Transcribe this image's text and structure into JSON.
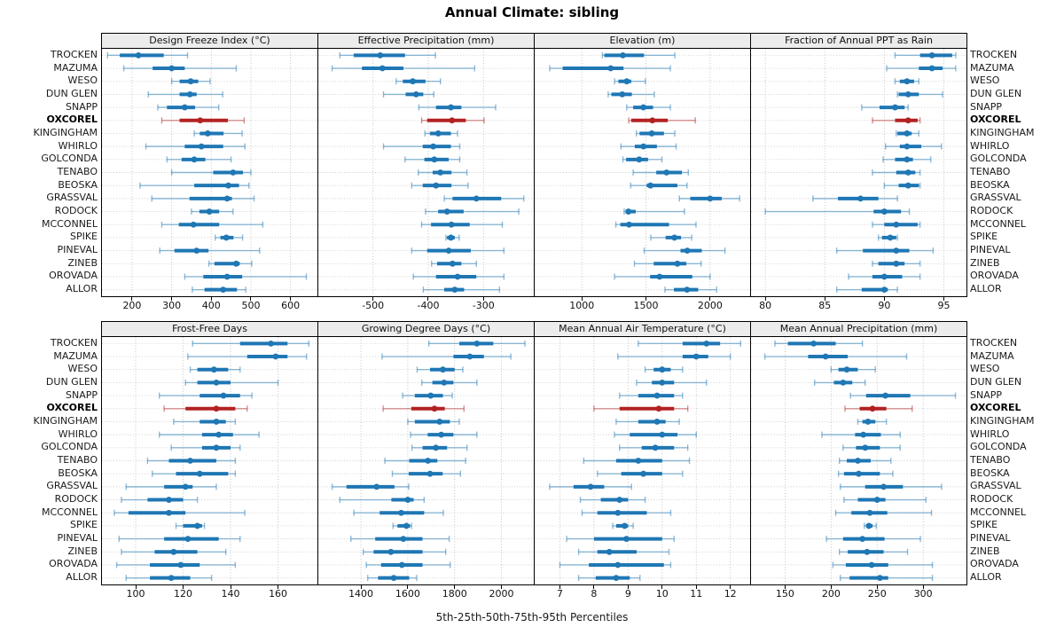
{
  "title": "Annual Climate: sibling",
  "caption": "5th-25th-50th-75th-95th Percentiles",
  "highlight_station": "OXCOREL",
  "colors": {
    "series_blue": "#1f77b4",
    "series_blue_light": "rgba(31,119,180,0.5)",
    "highlight_red": "#b22222",
    "highlight_red_light": "rgba(178,34,34,0.5)",
    "grid_line": "#bdbdbd",
    "row_line": "#cccccc",
    "panel_header_bg": "#ececec",
    "frame": "#000000"
  },
  "stations": [
    "TROCKEN",
    "MAZUMA",
    "WESO",
    "DUN GLEN",
    "SNAPP",
    "OXCOREL",
    "KINGINGHAM",
    "WHIRLO",
    "GOLCONDA",
    "TENABO",
    "BEOSKA",
    "GRASSVAL",
    "RODOCK",
    "MCCONNEL",
    "SPIKE",
    "PINEVAL",
    "ZINEB",
    "OROVADA",
    "ALLOR"
  ],
  "percentile_levels": [
    5,
    25,
    50,
    75,
    95
  ],
  "chart_data": [
    {
      "type": "percentile-dotplot",
      "title": "Design Freeze Index (°C)",
      "xlim": [
        124,
        668
      ],
      "ticks": [
        200,
        300,
        400,
        500,
        600
      ],
      "values": [
        [
          138,
          169,
          216,
          280,
          340
        ],
        [
          179,
          252,
          300,
          333,
          463
        ],
        [
          300,
          320,
          348,
          367,
          397
        ],
        [
          241,
          320,
          346,
          363,
          429
        ],
        [
          265,
          288,
          333,
          359,
          419
        ],
        [
          275,
          320,
          372,
          442,
          483
        ],
        [
          357,
          371,
          391,
          431,
          478
        ],
        [
          235,
          333,
          375,
          430,
          485
        ],
        [
          288,
          325,
          357,
          385,
          450
        ],
        [
          300,
          405,
          455,
          480,
          500
        ],
        [
          220,
          357,
          443,
          470,
          495
        ],
        [
          250,
          345,
          440,
          452,
          508
        ],
        [
          350,
          370,
          395,
          420,
          455
        ],
        [
          275,
          318,
          355,
          420,
          530
        ],
        [
          410,
          423,
          438,
          456,
          479
        ],
        [
          270,
          307,
          363,
          393,
          522
        ],
        [
          394,
          408,
          463,
          472,
          502
        ],
        [
          333,
          380,
          440,
          478,
          640
        ],
        [
          352,
          383,
          430,
          465,
          487
        ]
      ]
    },
    {
      "type": "percentile-dotplot",
      "title": "Effective Precipitation (mm)",
      "xlim": [
        -599,
        -209
      ],
      "ticks": [
        -500,
        -400,
        -300
      ],
      "values": [
        [
          -560,
          -535,
          -487,
          -442,
          -387
        ],
        [
          -574,
          -520,
          -483,
          -445,
          -316
        ],
        [
          -458,
          -446,
          -428,
          -405,
          -378
        ],
        [
          -481,
          -441,
          -422,
          -409,
          -390
        ],
        [
          -417,
          -386,
          -359,
          -340,
          -278
        ],
        [
          -412,
          -402,
          -357,
          -332,
          -299
        ],
        [
          -406,
          -397,
          -382,
          -359,
          -347
        ],
        [
          -481,
          -410,
          -391,
          -359,
          -343
        ],
        [
          -442,
          -407,
          -389,
          -363,
          -343
        ],
        [
          -418,
          -392,
          -378,
          -358,
          -330
        ],
        [
          -430,
          -410,
          -386,
          -358,
          -328
        ],
        [
          -371,
          -356,
          -313,
          -268,
          -227
        ],
        [
          -405,
          -382,
          -366,
          -336,
          -236
        ],
        [
          -412,
          -395,
          -358,
          -325,
          -266
        ],
        [
          -368,
          -366,
          -359,
          -352,
          -344
        ],
        [
          -430,
          -402,
          -363,
          -323,
          -263
        ],
        [
          -394,
          -384,
          -356,
          -340,
          -313
        ],
        [
          -427,
          -386,
          -347,
          -313,
          -263
        ],
        [
          -409,
          -371,
          -352,
          -335,
          -271
        ]
      ]
    },
    {
      "type": "percentile-dotplot",
      "title": "Elevation (m)",
      "xlim": [
        632,
        2312
      ],
      "ticks": [
        1000,
        1500,
        2000
      ],
      "values": [
        [
          1160,
          1175,
          1320,
          1485,
          1725
        ],
        [
          750,
          850,
          1225,
          1325,
          1690
        ],
        [
          1255,
          1285,
          1350,
          1385,
          1495
        ],
        [
          1205,
          1230,
          1315,
          1390,
          1565
        ],
        [
          1350,
          1400,
          1480,
          1555,
          1690
        ],
        [
          1365,
          1385,
          1550,
          1670,
          1885
        ],
        [
          1425,
          1450,
          1545,
          1640,
          1725
        ],
        [
          1305,
          1413,
          1480,
          1585,
          1735
        ],
        [
          1320,
          1345,
          1447,
          1516,
          1624
        ],
        [
          1400,
          1580,
          1660,
          1780,
          1830
        ],
        [
          1380,
          1505,
          1535,
          1745,
          1820
        ],
        [
          1760,
          1845,
          2000,
          2090,
          2230
        ],
        [
          1330,
          1340,
          1363,
          1420,
          1800
        ],
        [
          1265,
          1300,
          1368,
          1680,
          1890
        ],
        [
          1537,
          1653,
          1722,
          1773,
          1857
        ],
        [
          1486,
          1769,
          1822,
          1935,
          2116
        ],
        [
          1410,
          1560,
          1745,
          1815,
          1930
        ],
        [
          1255,
          1532,
          1606,
          1861,
          2000
        ],
        [
          1648,
          1718,
          1820,
          1907,
          2051
        ]
      ]
    },
    {
      "type": "percentile-dotplot",
      "title": "Fraction of Annual PPT as Rain",
      "xlim": [
        78.8,
        96.9
      ],
      "ticks": [
        80,
        85,
        90,
        95
      ],
      "values": [
        [
          90.9,
          93.0,
          94.0,
          95.7,
          96.0
        ],
        [
          90.2,
          92.9,
          94.0,
          94.9,
          96.0
        ],
        [
          90.9,
          91.3,
          91.9,
          92.5,
          92.9
        ],
        [
          91.1,
          91.2,
          92.0,
          92.9,
          94.9
        ],
        [
          88.1,
          89.6,
          90.9,
          91.7,
          92.0
        ],
        [
          89.0,
          90.9,
          92.0,
          92.8,
          93.0
        ],
        [
          91.0,
          91.1,
          91.9,
          92.3,
          92.9
        ],
        [
          90.1,
          91.3,
          91.9,
          93.1,
          94.8
        ],
        [
          89.9,
          90.9,
          91.9,
          92.4,
          93.9
        ],
        [
          89.0,
          91.0,
          92.0,
          92.6,
          93.0
        ],
        [
          90.0,
          91.2,
          92.0,
          92.9,
          93.0
        ],
        [
          84.0,
          86.1,
          88.0,
          89.5,
          91.1
        ],
        [
          80.0,
          89.1,
          90.0,
          91.4,
          92.1
        ],
        [
          89.0,
          90.0,
          91.0,
          92.8,
          93.0
        ],
        [
          89.5,
          89.8,
          90.5,
          91.0,
          91.1
        ],
        [
          86.0,
          88.2,
          91.0,
          92.1,
          94.1
        ],
        [
          89.0,
          89.5,
          91.0,
          91.7,
          93.0
        ],
        [
          87.0,
          89.0,
          90.0,
          91.5,
          93.0
        ],
        [
          86.0,
          88.1,
          90.0,
          90.3,
          91.1
        ]
      ]
    },
    {
      "type": "percentile-dotplot",
      "title": "Frost-Free Days",
      "xlim": [
        85.8,
        176.6
      ],
      "ticks": [
        100,
        120,
        140,
        160
      ],
      "values": [
        [
          124,
          144,
          157,
          164,
          173
        ],
        [
          122,
          147,
          159,
          164,
          172
        ],
        [
          123,
          126,
          133,
          139,
          144
        ],
        [
          121,
          126,
          134,
          140,
          160
        ],
        [
          110,
          127,
          137,
          144,
          149
        ],
        [
          112,
          121,
          134,
          142,
          147
        ],
        [
          116,
          127,
          134,
          138,
          142
        ],
        [
          110,
          128,
          135,
          141,
          152
        ],
        [
          115,
          128,
          134,
          140,
          144
        ],
        [
          105,
          114,
          123,
          134,
          142
        ],
        [
          107,
          117,
          127,
          139,
          142
        ],
        [
          96,
          112,
          121,
          124,
          134
        ],
        [
          94,
          105,
          114,
          120,
          126
        ],
        [
          91,
          97,
          114,
          121,
          146
        ],
        [
          117,
          120,
          126,
          128,
          129
        ],
        [
          93,
          112,
          122,
          135,
          144
        ],
        [
          94,
          108,
          116,
          126,
          138
        ],
        [
          92,
          106,
          119,
          127,
          142
        ],
        [
          96,
          106,
          115,
          123,
          132
        ]
      ]
    },
    {
      "type": "percentile-dotplot",
      "title": "Growing Degree Days (°C)",
      "xlim": [
        1218,
        2138
      ],
      "ticks": [
        1400,
        1600,
        1800,
        2000
      ],
      "values": [
        [
          1690,
          1820,
          1895,
          1965,
          2100
        ],
        [
          1490,
          1795,
          1865,
          1925,
          2040
        ],
        [
          1640,
          1695,
          1750,
          1800,
          1835
        ],
        [
          1660,
          1705,
          1755,
          1795,
          1895
        ],
        [
          1578,
          1630,
          1698,
          1750,
          1790
        ],
        [
          1495,
          1615,
          1714,
          1758,
          1840
        ],
        [
          1600,
          1630,
          1736,
          1780,
          1820
        ],
        [
          1612,
          1685,
          1743,
          1795,
          1895
        ],
        [
          1618,
          1663,
          1720,
          1768,
          1853
        ],
        [
          1502,
          1606,
          1686,
          1726,
          1847
        ],
        [
          1534,
          1604,
          1695,
          1749,
          1825
        ],
        [
          1277,
          1338,
          1467,
          1543,
          1604
        ],
        [
          1310,
          1530,
          1600,
          1625,
          1670
        ],
        [
          1370,
          1480,
          1572,
          1670,
          1752
        ],
        [
          1537,
          1556,
          1594,
          1610,
          1616
        ],
        [
          1357,
          1461,
          1581,
          1663,
          1777
        ],
        [
          1410,
          1454,
          1528,
          1663,
          1762
        ],
        [
          1423,
          1486,
          1575,
          1663,
          1781
        ],
        [
          1429,
          1473,
          1540,
          1606,
          1638
        ]
      ]
    },
    {
      "type": "percentile-dotplot",
      "title": "Mean Annual Air Temperature (°C)",
      "xlim": [
        6.26,
        12.58
      ],
      "ticks": [
        7,
        8,
        9,
        10,
        11,
        12
      ],
      "values": [
        [
          9.3,
          10.6,
          11.3,
          11.7,
          12.3
        ],
        [
          8.7,
          10.6,
          11.0,
          11.35,
          12.0
        ],
        [
          9.5,
          9.75,
          10.0,
          10.25,
          10.6
        ],
        [
          9.25,
          9.7,
          10.0,
          10.35,
          11.3
        ],
        [
          8.75,
          9.3,
          9.85,
          10.35,
          10.6
        ],
        [
          8.0,
          8.75,
          9.9,
          10.35,
          10.75
        ],
        [
          8.65,
          9.3,
          9.85,
          10.1,
          10.5
        ],
        [
          8.6,
          9.05,
          10.0,
          10.45,
          11.0
        ],
        [
          8.75,
          9.4,
          9.8,
          10.35,
          10.75
        ],
        [
          7.7,
          8.65,
          9.3,
          10.0,
          10.8
        ],
        [
          8.1,
          8.8,
          9.45,
          10.0,
          10.6
        ],
        [
          6.7,
          7.4,
          7.9,
          8.3,
          9.1
        ],
        [
          7.6,
          8.2,
          8.75,
          9.0,
          9.5
        ],
        [
          7.65,
          8.1,
          8.7,
          9.55,
          10.25
        ],
        [
          8.55,
          8.65,
          8.9,
          9.0,
          9.15
        ],
        [
          7.2,
          8.0,
          8.95,
          10.0,
          10.35
        ],
        [
          7.55,
          8.1,
          8.45,
          9.25,
          10.2
        ],
        [
          7.0,
          7.85,
          8.7,
          10.05,
          10.25
        ],
        [
          7.55,
          8.05,
          8.65,
          9.05,
          9.35
        ]
      ]
    },
    {
      "type": "percentile-dotplot",
      "title": "Mean Annual Precipitation (mm)",
      "xlim": [
        113,
        347
      ],
      "ticks": [
        150,
        200,
        250,
        300
      ],
      "values": [
        [
          139,
          153,
          181,
          205,
          234
        ],
        [
          128,
          175,
          194,
          218,
          282
        ],
        [
          200,
          208,
          217,
          229,
          248
        ],
        [
          182,
          203,
          213,
          223,
          237
        ],
        [
          221,
          238,
          259,
          286,
          335
        ],
        [
          215,
          231,
          245,
          260,
          288
        ],
        [
          229,
          234,
          240,
          248,
          260
        ],
        [
          190,
          226,
          235,
          254,
          275
        ],
        [
          213,
          227,
          237,
          253,
          275
        ],
        [
          209,
          217,
          229,
          243,
          265
        ],
        [
          208,
          214,
          230,
          253,
          267
        ],
        [
          210,
          237,
          257,
          278,
          320
        ],
        [
          214,
          229,
          250,
          259,
          303
        ],
        [
          205,
          222,
          242,
          261,
          309
        ],
        [
          236,
          238,
          241,
          245,
          249
        ],
        [
          195,
          213,
          234,
          258,
          297
        ],
        [
          209,
          218,
          239,
          257,
          283
        ],
        [
          202,
          216,
          244,
          262,
          310
        ],
        [
          210,
          220,
          253,
          262,
          310
        ]
      ]
    }
  ]
}
